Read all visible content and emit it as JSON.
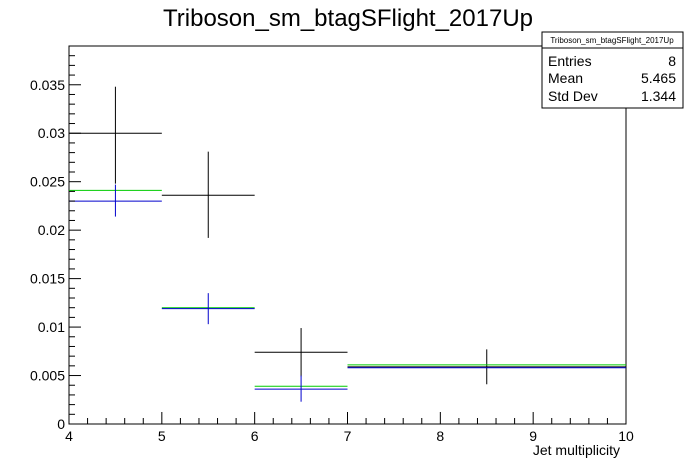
{
  "chart_data": {
    "type": "histogram",
    "title": "Triboson_sm_btagSFlight_2017Up",
    "xlabel": "Jet multiplicity",
    "ylabel": "",
    "xlim": [
      4,
      10
    ],
    "ylim": [
      0,
      0.039
    ],
    "x_ticks": [
      "4",
      "5",
      "6",
      "7",
      "8",
      "9",
      "10"
    ],
    "y_ticks": [
      "0",
      "0.005",
      "0.01",
      "0.015",
      "0.02",
      "0.025",
      "0.03",
      "0.035"
    ],
    "y_tick_values": [
      0,
      0.005,
      0.01,
      0.015,
      0.02,
      0.025,
      0.03,
      0.035
    ],
    "grid": false,
    "series": [
      {
        "color": "#000000",
        "bins": [
          {
            "x0": 4,
            "x1": 5,
            "y": 0.03,
            "err_lo": 0.0248,
            "err_hi": 0.0348
          },
          {
            "x0": 5,
            "x1": 6,
            "y": 0.0236,
            "err_lo": 0.0192,
            "err_hi": 0.0281
          },
          {
            "x0": 6,
            "x1": 7,
            "y": 0.0074,
            "err_lo": 0.0049,
            "err_hi": 0.0099
          },
          {
            "x0": 7,
            "x1": 10,
            "y": 0.0059,
            "err_lo": 0.0041,
            "err_hi": 0.0077
          }
        ]
      },
      {
        "color": "#00cc00",
        "bins": [
          {
            "x0": 4,
            "x1": 5,
            "y": 0.0241
          },
          {
            "x0": 5,
            "x1": 6,
            "y": 0.012
          },
          {
            "x0": 6,
            "x1": 7,
            "y": 0.0039
          },
          {
            "x0": 7,
            "x1": 10,
            "y": 0.0061
          }
        ]
      },
      {
        "color": "#0000cc",
        "bins": [
          {
            "x0": 4,
            "x1": 5,
            "y": 0.023,
            "err_lo": 0.0214,
            "err_hi": 0.0247
          },
          {
            "x0": 5,
            "x1": 6,
            "y": 0.0119,
            "err_lo": 0.0103,
            "err_hi": 0.0135
          },
          {
            "x0": 6,
            "x1": 7,
            "y": 0.0036,
            "err_lo": 0.0023,
            "err_hi": 0.005
          },
          {
            "x0": 7,
            "x1": 10,
            "y": 0.0058
          }
        ]
      }
    ],
    "stats_box": {
      "title": "Triboson_sm_btagSFlight_2017Up",
      "rows": [
        {
          "label": "Entries",
          "value": "8"
        },
        {
          "label": "Mean",
          "value": "5.465"
        },
        {
          "label": "Std Dev",
          "value": "1.344"
        }
      ]
    }
  }
}
